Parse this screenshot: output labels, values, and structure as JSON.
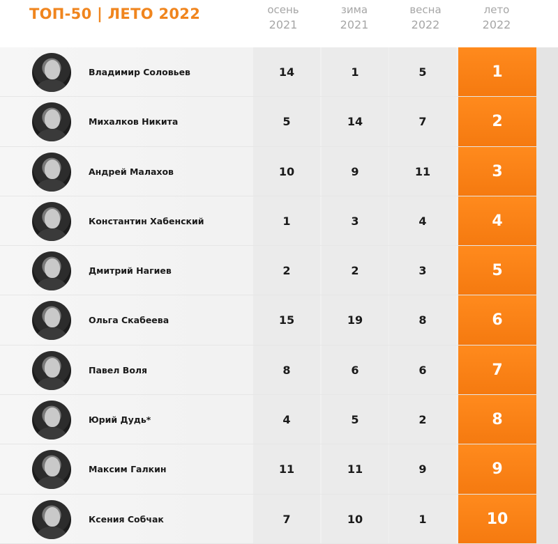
{
  "header": {
    "title": "ТОП-50 |  ЛЕТО 2022",
    "columns": [
      {
        "season": "осень",
        "year": "2021"
      },
      {
        "season": "зима",
        "year": "2021"
      },
      {
        "season": "весна",
        "year": "2022"
      },
      {
        "season": "лето",
        "year": "2022"
      }
    ]
  },
  "colors": {
    "accent": "#f5821f",
    "muted_header": "#a6a6a6"
  },
  "rows": [
    {
      "name": "Владимир Соловьев",
      "autumn": "14",
      "winter": "1",
      "spring": "5",
      "summer": "1"
    },
    {
      "name": "Михалков Никита",
      "autumn": "5",
      "winter": "14",
      "spring": "7",
      "summer": "2"
    },
    {
      "name": "Андрей Малахов",
      "autumn": "10",
      "winter": "9",
      "spring": "11",
      "summer": "3"
    },
    {
      "name": "Константин Хабенский",
      "autumn": "1",
      "winter": "3",
      "spring": "4",
      "summer": "4"
    },
    {
      "name": "Дмитрий Нагиев",
      "autumn": "2",
      "winter": "2",
      "spring": "3",
      "summer": "5"
    },
    {
      "name": "Ольга Скабеева",
      "autumn": "15",
      "winter": "19",
      "spring": "8",
      "summer": "6"
    },
    {
      "name": "Павел Воля",
      "autumn": "8",
      "winter": "6",
      "spring": "6",
      "summer": "7"
    },
    {
      "name": "Юрий Дудь*",
      "autumn": "4",
      "winter": "5",
      "spring": "2",
      "summer": "8"
    },
    {
      "name": "Максим Галкин",
      "autumn": "11",
      "winter": "11",
      "spring": "9",
      "summer": "9"
    },
    {
      "name": "Ксения Собчак",
      "autumn": "7",
      "winter": "10",
      "spring": "1",
      "summer": "10"
    }
  ]
}
